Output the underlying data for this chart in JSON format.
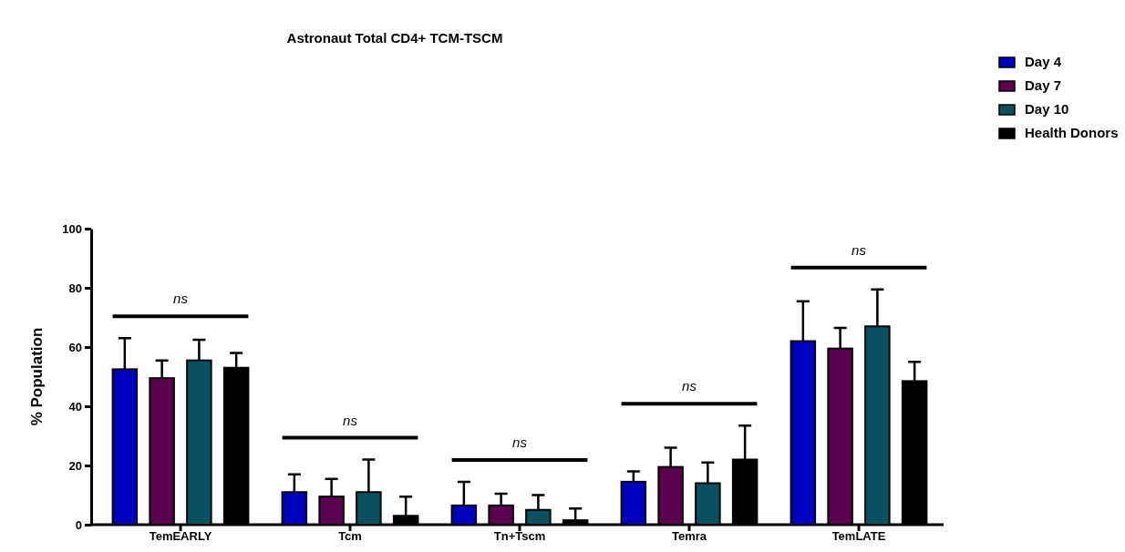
{
  "chart_data": {
    "type": "bar",
    "title": "Astronaut Total CD4+ TCM-TSCM",
    "ylabel": "% Population",
    "categories": [
      "TemEARLY",
      "Tcm",
      "Tn+Tscm",
      "Temra",
      "TemLATE"
    ],
    "series": [
      {
        "name": "Day 4",
        "color": "#0000c0",
        "values": [
          52.5,
          11,
          6.5,
          14.5,
          62
        ],
        "errors": [
          [
            52.5,
            63
          ],
          [
            11,
            17
          ],
          [
            6.5,
            14.5
          ],
          [
            14.5,
            18
          ],
          [
            62,
            75.5
          ]
        ]
      },
      {
        "name": "Day 7",
        "color": "#5c0050",
        "values": [
          49.5,
          9.5,
          6.5,
          19.5,
          59.5
        ],
        "errors": [
          [
            49.5,
            55.5
          ],
          [
            9.5,
            15.5
          ],
          [
            6.5,
            10.5
          ],
          [
            19.5,
            26
          ],
          [
            59.5,
            66.5
          ]
        ]
      },
      {
        "name": "Day 10",
        "color": "#0a5060",
        "values": [
          55.5,
          11,
          5,
          14,
          67
        ],
        "errors": [
          [
            55.5,
            62.5
          ],
          [
            11,
            22
          ],
          [
            5,
            10
          ],
          [
            14,
            21
          ],
          [
            67,
            79.5
          ]
        ]
      },
      {
        "name": "Health Donors",
        "color": "#000000",
        "values": [
          53,
          3,
          1.5,
          22,
          48.5
        ],
        "errors": [
          [
            53,
            58
          ],
          [
            3,
            9.5
          ],
          [
            1.5,
            5.5
          ],
          [
            22,
            33.5
          ],
          [
            48.5,
            55
          ]
        ]
      }
    ],
    "ylim": [
      0,
      100
    ],
    "yticks": [
      0,
      20,
      40,
      60,
      80,
      100
    ],
    "grid": false,
    "legend": "top right",
    "annotations": [
      "ns",
      "ns",
      "ns",
      "ns",
      "ns"
    ]
  }
}
